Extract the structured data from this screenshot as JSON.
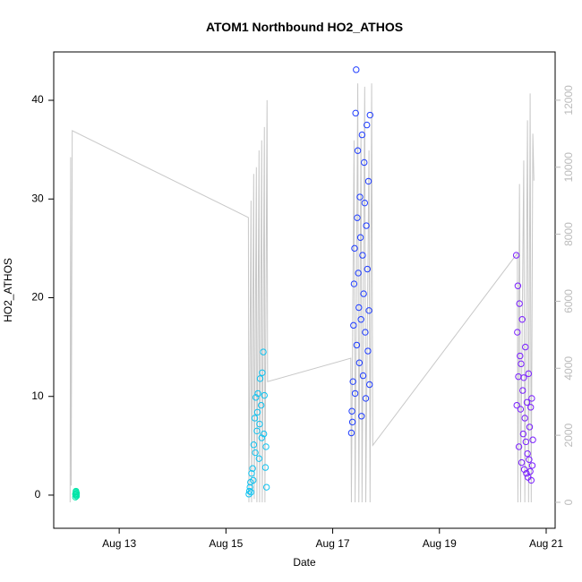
{
  "chart_data": {
    "type": "scatter",
    "title": "ATOM1 Northbound HO2_ATHOS",
    "x_label": "Date",
    "y_label": "HO2_ATHOS",
    "xlim": [
      11.773,
      21.168
    ],
    "xticks": [
      {
        "value": 13,
        "label": "Aug 13"
      },
      {
        "value": 15,
        "label": "Aug 15"
      },
      {
        "value": 17,
        "label": "Aug 17"
      },
      {
        "value": 19,
        "label": "Aug 19"
      },
      {
        "value": 21,
        "label": "Aug 21"
      }
    ],
    "ylim": [
      -3.36,
      44.9
    ],
    "yticks": [
      0,
      10,
      20,
      30,
      40
    ],
    "y2lim": [
      -775,
      13440
    ],
    "y2ticks": [
      0,
      2000,
      4000,
      6000,
      8000,
      10000,
      12000
    ],
    "series": [
      {
        "type": "line",
        "axis": "y2",
        "color": "#c8c8c8",
        "x": [
          12.08,
          12.09,
          12.1,
          12.12,
          15.42,
          15.43,
          15.47,
          15.48,
          15.52,
          15.53,
          15.57,
          15.58,
          15.62,
          15.63,
          15.67,
          15.68,
          15.72,
          15.73,
          15.77,
          15.78,
          17.34,
          17.35,
          17.4,
          17.42,
          17.47,
          17.49,
          17.53,
          17.55,
          17.6,
          17.62,
          17.68,
          17.7,
          17.73,
          17.75,
          20.46,
          20.47,
          20.5,
          20.52,
          20.58,
          20.6,
          20.65,
          20.67,
          20.7,
          20.72,
          20.75,
          20.77
        ],
        "values": [
          0,
          10300,
          500,
          11090,
          8500,
          0,
          9000,
          0,
          9800,
          100,
          10000,
          0,
          10500,
          0,
          10800,
          0,
          11200,
          0,
          12000,
          3600,
          4300,
          0,
          10800,
          0,
          12500,
          0,
          11000,
          0,
          12400,
          0,
          10500,
          0,
          12500,
          1700,
          7430,
          0,
          9500,
          0,
          10200,
          0,
          11400,
          0,
          12200,
          0,
          11000,
          9600
        ]
      },
      {
        "color": "#00e5a8",
        "x": [
          12.18,
          12.18,
          12.19,
          12.19,
          12.19,
          12.2,
          12.2,
          12.2
        ],
        "values": [
          0.1,
          -0.2,
          0.3,
          0.0,
          0.4,
          -0.1,
          0.2,
          0.1
        ]
      },
      {
        "color": "#0fc2f0",
        "x": [
          15.43,
          15.44,
          15.45,
          15.46,
          15.47,
          15.48,
          15.5,
          15.51,
          15.52,
          15.54,
          15.55,
          15.56,
          15.58,
          15.59,
          15.6,
          15.62,
          15.63,
          15.64,
          15.66,
          15.67,
          15.68,
          15.7,
          15.71,
          15.72,
          15.74,
          15.75,
          15.76
        ],
        "values": [
          0.1,
          0.4,
          0.8,
          1.3,
          0.3,
          2.2,
          2.7,
          1.5,
          5.1,
          7.8,
          4.3,
          9.9,
          6.5,
          8.4,
          10.3,
          3.7,
          7.2,
          11.8,
          9.1,
          5.8,
          12.4,
          14.5,
          6.2,
          10.1,
          2.8,
          4.9,
          0.8
        ]
      },
      {
        "color": "#1f3dff",
        "x": [
          17.35,
          17.36,
          17.37,
          17.38,
          17.39,
          17.4,
          17.41,
          17.42,
          17.43,
          17.44,
          17.45,
          17.46,
          17.47,
          17.48,
          17.49,
          17.5,
          17.51,
          17.52,
          17.53,
          17.54,
          17.55,
          17.56,
          17.57,
          17.58,
          17.59,
          17.6,
          17.61,
          17.62,
          17.63,
          17.64,
          17.65,
          17.66,
          17.67,
          17.68,
          17.69,
          17.7
        ],
        "values": [
          6.3,
          8.5,
          7.4,
          11.5,
          17.2,
          21.4,
          25.0,
          10.3,
          38.7,
          43.1,
          15.2,
          28.1,
          34.9,
          22.5,
          19.0,
          13.4,
          30.2,
          26.1,
          17.8,
          8.0,
          36.5,
          24.3,
          12.1,
          20.4,
          33.7,
          29.6,
          16.5,
          9.8,
          27.3,
          37.5,
          22.9,
          14.6,
          31.8,
          18.7,
          11.2,
          38.5
        ]
      },
      {
        "color": "#7a1fff",
        "x": [
          20.44,
          20.45,
          20.46,
          20.47,
          20.48,
          20.49,
          20.5,
          20.51,
          20.52,
          20.53,
          20.54,
          20.55,
          20.56,
          20.57,
          20.58,
          20.59,
          20.6,
          20.61,
          20.62,
          20.63,
          20.64,
          20.65,
          20.66,
          20.67,
          20.68,
          20.69,
          20.7,
          20.71,
          20.72,
          20.73,
          20.74,
          20.75
        ],
        "values": [
          24.3,
          9.1,
          16.5,
          21.2,
          12.0,
          4.9,
          19.4,
          14.1,
          8.7,
          13.3,
          3.3,
          17.8,
          10.6,
          6.2,
          11.9,
          2.6,
          7.8,
          15.0,
          5.4,
          2.2,
          9.4,
          4.2,
          1.8,
          12.3,
          3.6,
          6.9,
          2.4,
          8.9,
          1.5,
          9.8,
          3.0,
          5.6
        ]
      }
    ]
  }
}
